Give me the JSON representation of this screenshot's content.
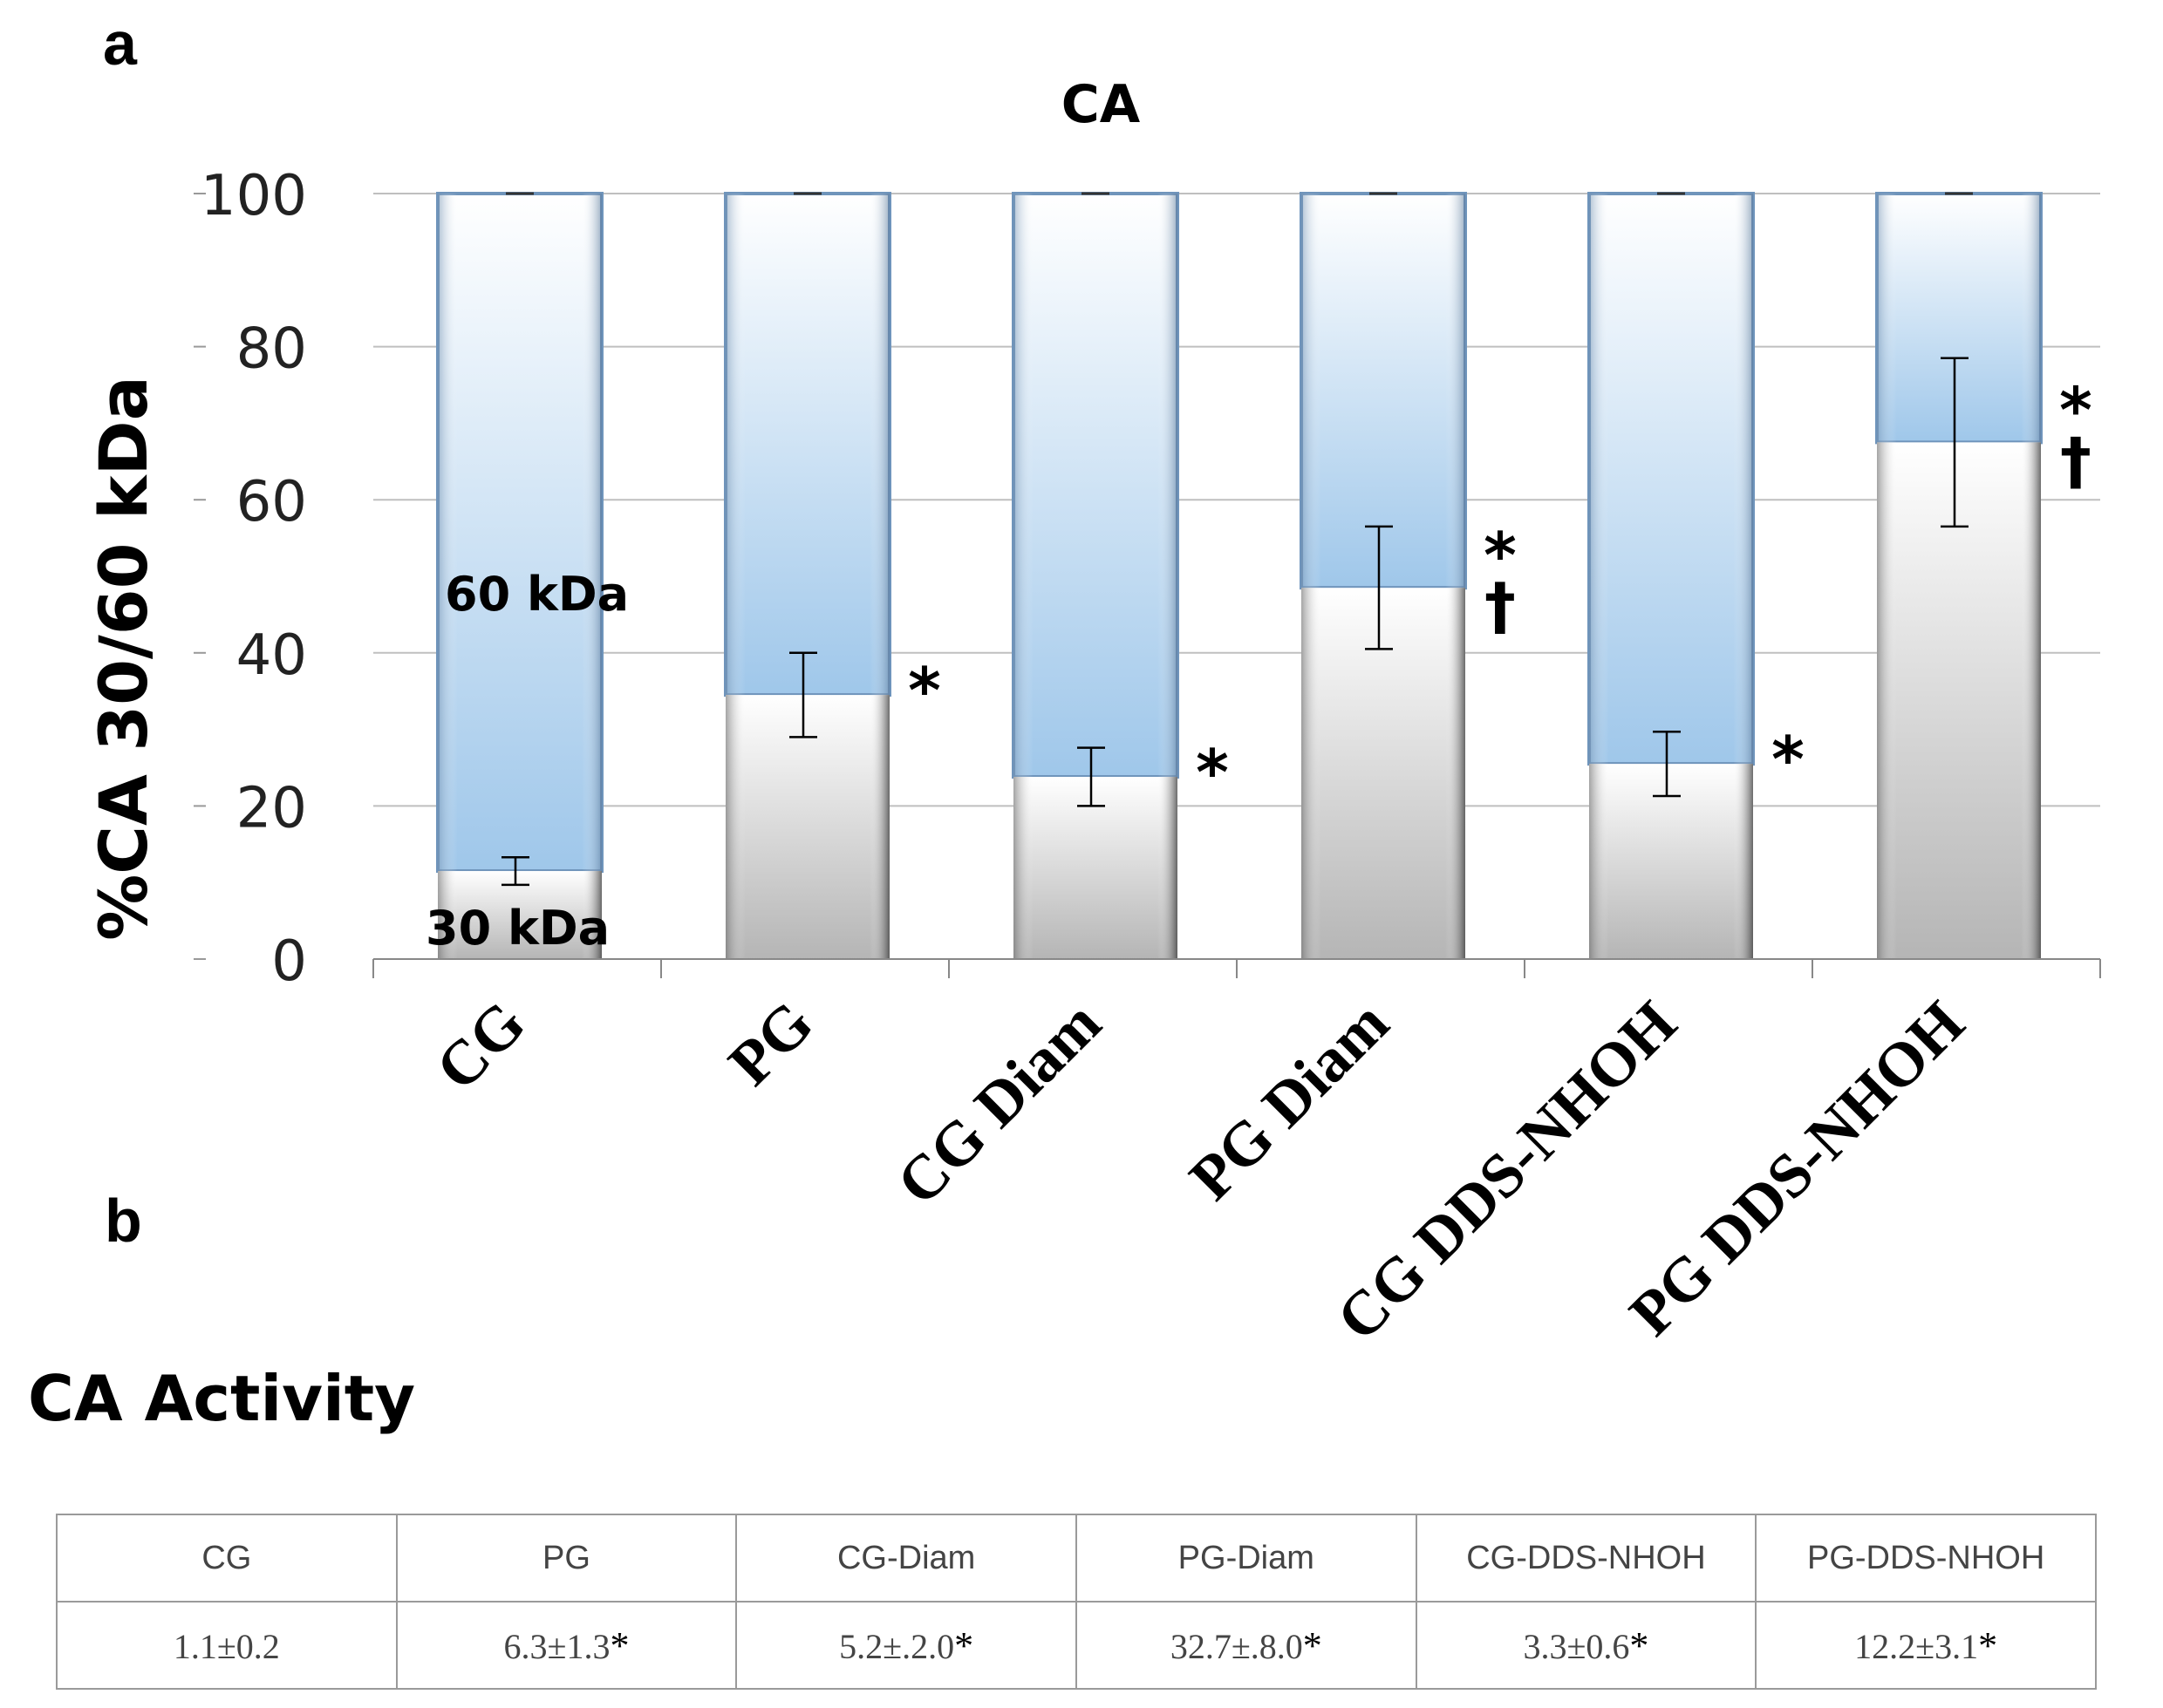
{
  "panel_labels": {
    "a": "a",
    "b": "b"
  },
  "chart_data": {
    "type": "bar",
    "stacked": true,
    "title": "CA",
    "ylabel": "%CA 30/60 kDa",
    "xlabel": "",
    "ylim": [
      0,
      100
    ],
    "yticks": [
      0,
      20,
      40,
      60,
      80,
      100
    ],
    "grid": true,
    "categories": [
      "CG",
      "PG",
      "CG Diam",
      "PG Diam",
      "CG DDS-NHOH",
      "PG DDS-NHOH"
    ],
    "series": [
      {
        "name": "30 kDa",
        "values": [
          11.5,
          34.5,
          23.8,
          48.5,
          25.5,
          67.5
        ],
        "error": [
          1.8,
          5.5,
          3.8,
          8.0,
          4.2,
          11.0
        ],
        "color": "#c8c8c8"
      },
      {
        "name": "60 kDa",
        "values": [
          88.5,
          65.5,
          76.2,
          51.5,
          74.5,
          32.5
        ],
        "color": "#9fc7ea"
      }
    ],
    "annotations": [
      "",
      "*",
      "*",
      "*\n†",
      "*",
      "*\n†"
    ],
    "series_labels": {
      "top": "60 kDa",
      "bottom": "30 kDa"
    },
    "colors": {
      "upper": "#9fc7ea",
      "upper_border": "#6f94bb",
      "lower": "#c8c8c8",
      "grid": "#bfbfbf"
    }
  },
  "activity": {
    "title": "CA  Activity",
    "headers": [
      "CG",
      "PG",
      "CG-Diam",
      "PG-Diam",
      "CG-DDS-NHOH",
      "PG-DDS-NHOH"
    ],
    "values": [
      "1.1±0.2",
      "6.3±1.3",
      "5.2±.2.0",
      "32.7±.8.0",
      "3.3±0.6",
      "12.2±3.1"
    ],
    "marks": [
      "",
      "*",
      "*",
      "*",
      "*",
      "*"
    ]
  }
}
